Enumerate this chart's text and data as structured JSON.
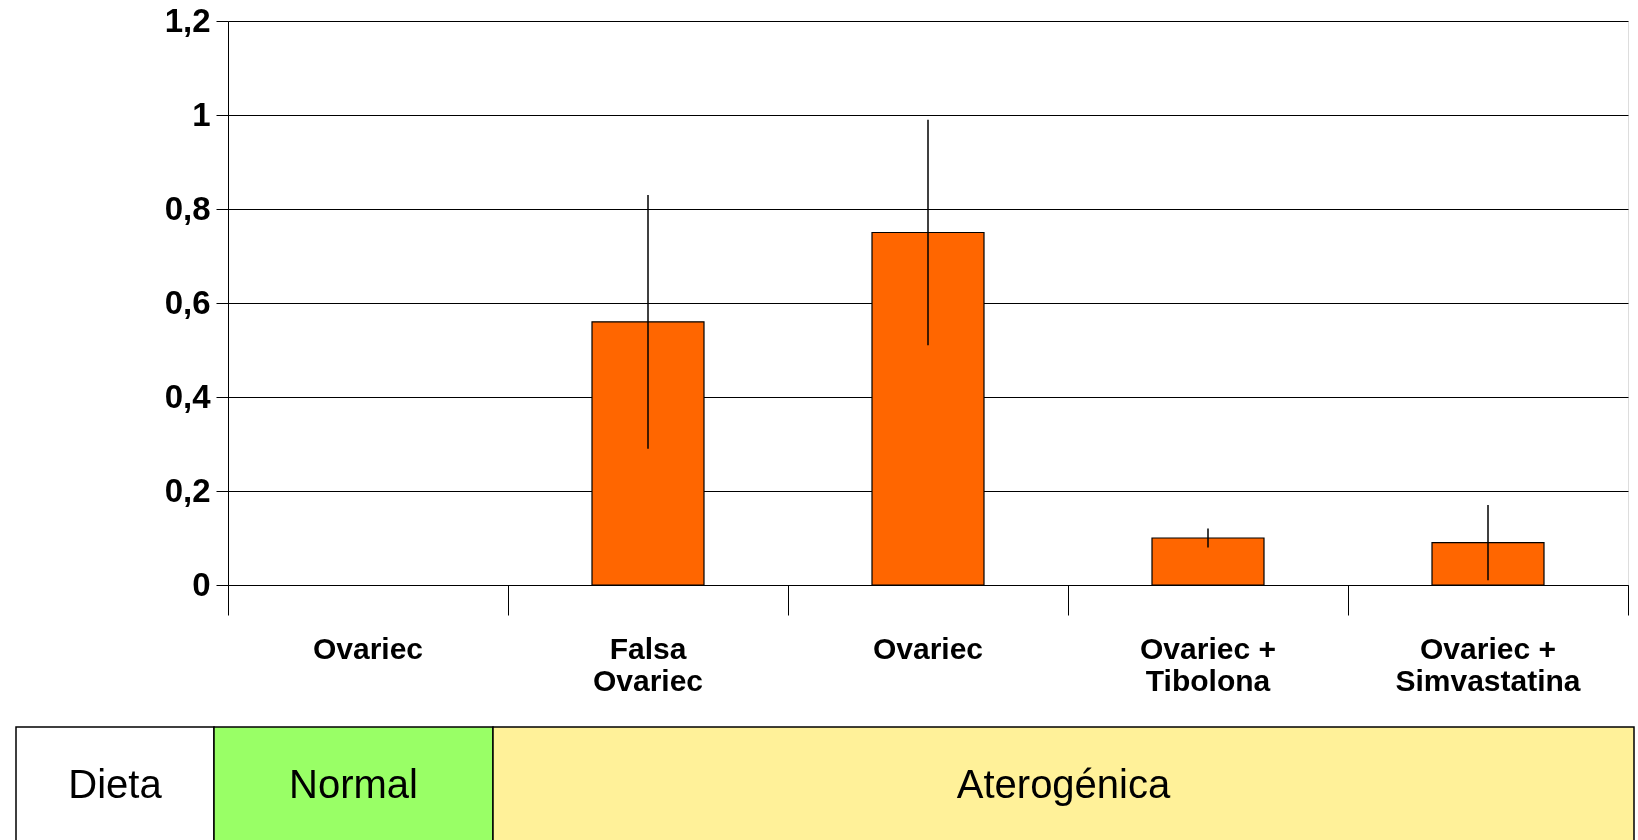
{
  "chart_data": {
    "type": "bar",
    "categories": [
      "Ovariec",
      "Falsa\nOvariec",
      "Ovariec",
      "Ovariec +\nTibolona",
      "Ovariec +\nSimvastatina"
    ],
    "values": [
      0,
      0.56,
      0.75,
      0.1,
      0.09
    ],
    "errors": [
      null,
      0.27,
      0.24,
      0.02,
      0.08
    ],
    "color": "#ff6600",
    "ylim": [
      0,
      1.2
    ],
    "yticks": [
      0,
      {
        "value": 0.2,
        "label": "0,2"
      },
      {
        "value": 0.4,
        "label": "0,4"
      },
      {
        "value": 0.6,
        "label": "0,6"
      },
      {
        "value": 0.8,
        "label": "0,8"
      },
      1,
      {
        "value": 1.2,
        "label": "1,2"
      }
    ],
    "grid": "y",
    "annotations": [
      "Dieta",
      "Normal",
      "Aterogénica"
    ]
  }
}
